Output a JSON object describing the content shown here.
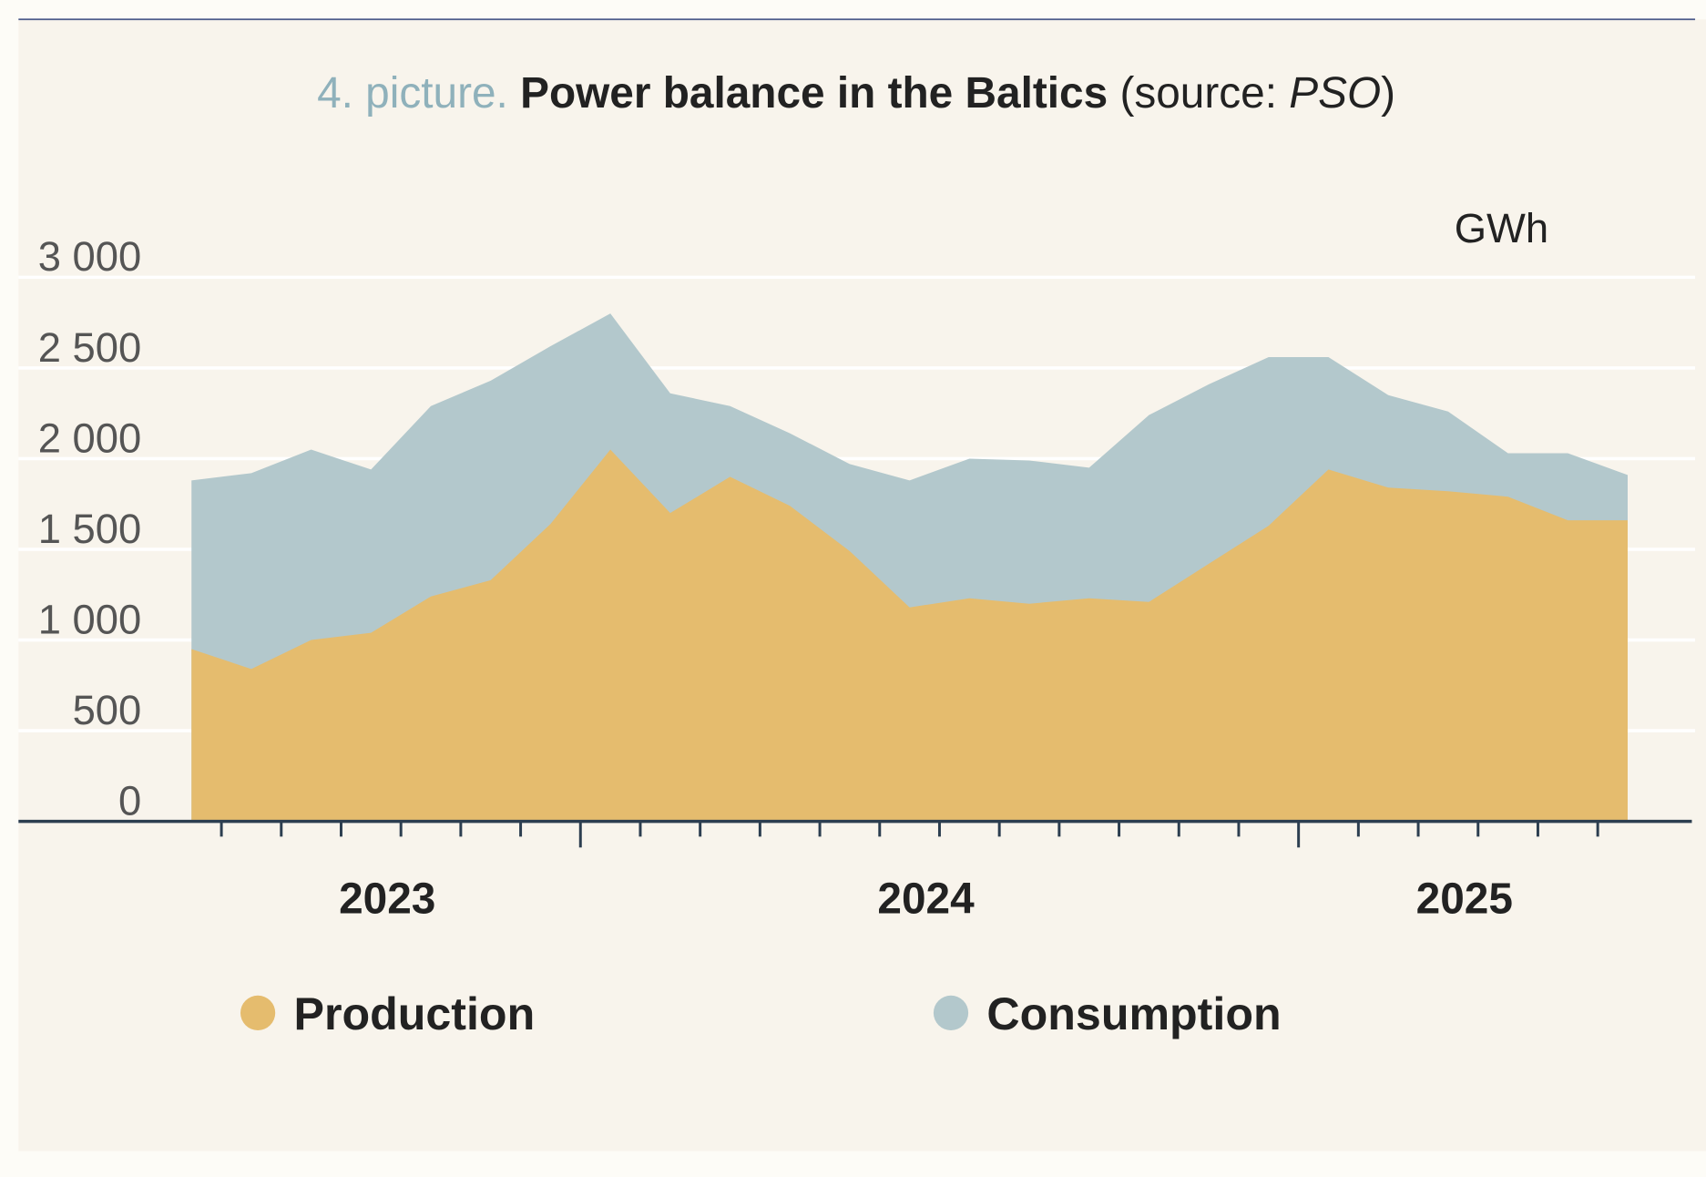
{
  "chart_data": {
    "type": "area",
    "title": {
      "prefix": "4. picture.",
      "main": "Power balance in the Baltics",
      "source_open": "(source:",
      "source": "PSO",
      "source_close": ")"
    },
    "unit": "GWh",
    "categories": [
      null,
      null,
      null,
      "2023",
      null,
      null,
      null,
      null,
      null,
      null,
      null,
      null,
      "2024",
      null,
      null,
      null,
      null,
      null,
      null,
      null,
      null,
      "2025",
      null,
      null,
      null
    ],
    "series": [
      {
        "name": "Consumption",
        "color": "#b3c8cc",
        "values": [
          1880,
          1920,
          2050,
          1940,
          2290,
          2430,
          2620,
          2800,
          2360,
          2290,
          2140,
          1970,
          1880,
          2000,
          1990,
          1950,
          2240,
          2410,
          2560,
          2560,
          2350,
          2260,
          2030,
          2030,
          1910
        ]
      },
      {
        "name": "Production",
        "color": "#e5bc6e",
        "values": [
          950,
          840,
          1000,
          1040,
          1240,
          1330,
          1640,
          2050,
          1700,
          1900,
          1740,
          1490,
          1180,
          1230,
          1200,
          1230,
          1210,
          1420,
          1630,
          1940,
          1840,
          1820,
          1790,
          1660,
          1660
        ]
      }
    ],
    "legend_order": [
      1,
      0
    ],
    "ylim": [
      0,
      3000
    ],
    "yticks": [
      0,
      500,
      {
        "value": 1000,
        "label": "1 000"
      },
      {
        "value": 1500,
        "label": "1 500"
      },
      {
        "value": 2000,
        "label": "2 000"
      },
      {
        "value": 2500,
        "label": "2 500"
      },
      {
        "value": 3000,
        "label": "3 000"
      }
    ],
    "grid": true
  }
}
